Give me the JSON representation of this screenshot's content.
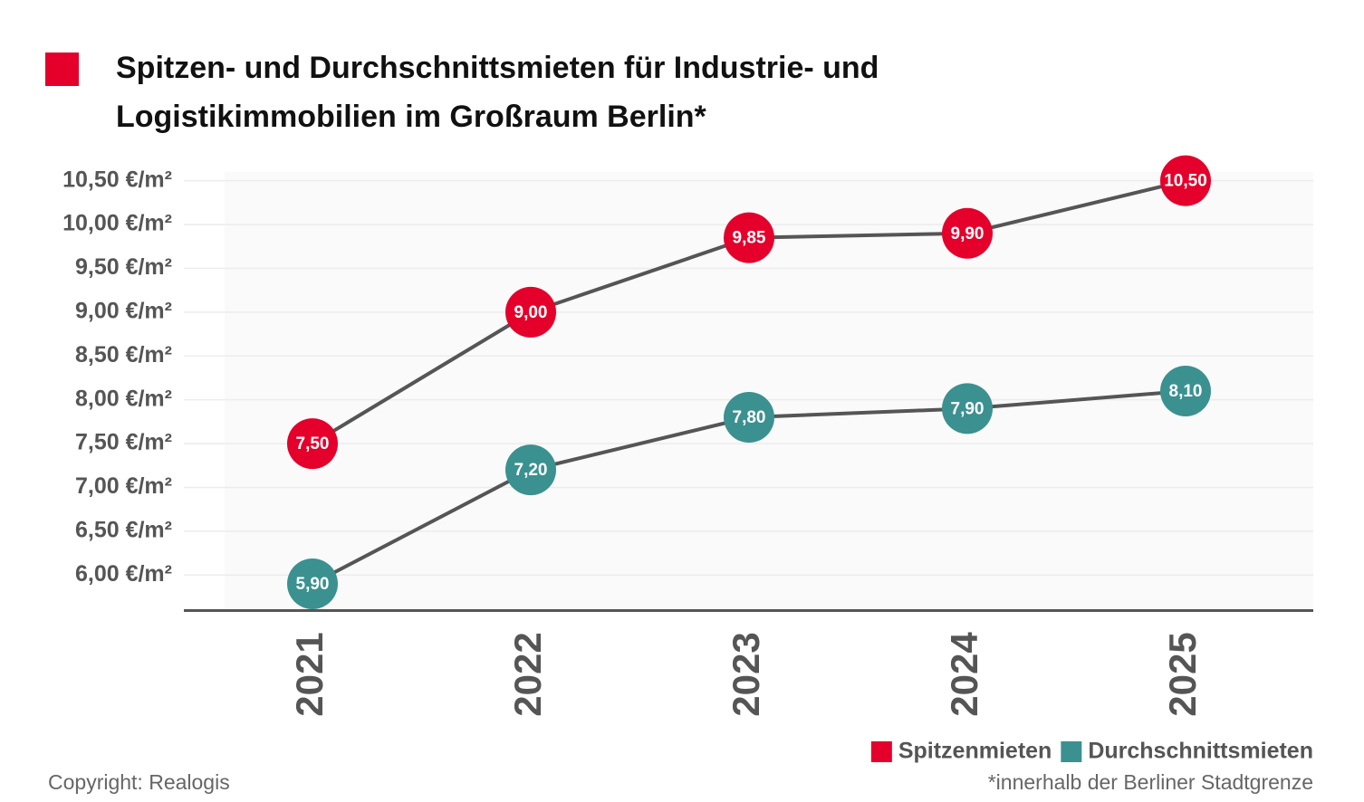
{
  "chart_data": {
    "type": "line",
    "title": "Spitzen- und Durchschnittsmieten für Industrie- und Logistikimmobilien im Großraum Berlin*",
    "title_marker_color": "#e4002b",
    "categories": [
      "2021",
      "2022",
      "2023",
      "2024",
      "2025"
    ],
    "series": [
      {
        "name": "Spitzenmieten",
        "color": "#e4002b",
        "values": [
          7.5,
          9.0,
          9.85,
          9.9,
          10.5
        ],
        "value_labels": [
          "7,50",
          "9,00",
          "9,85",
          "9,90",
          "10,50"
        ]
      },
      {
        "name": "Durchschnittsmieten",
        "color": "#3a9190",
        "values": [
          5.9,
          7.2,
          7.8,
          7.9,
          8.1
        ],
        "value_labels": [
          "5,90",
          "7,20",
          "7,80",
          "7,90",
          "8,10"
        ]
      }
    ],
    "line_color": "#555555",
    "ylim": [
      5.6,
      10.6
    ],
    "yticks": [
      {
        "value": 6,
        "label": "6,00 €/m²"
      },
      {
        "value": 6.5,
        "label": "6,50 €/m²"
      },
      {
        "value": 7,
        "label": "7,00 €/m²"
      },
      {
        "value": 7.5,
        "label": "7,50 €/m²"
      },
      {
        "value": 8,
        "label": "8,00 €/m²"
      },
      {
        "value": 8.5,
        "label": "8,50 €/m²"
      },
      {
        "value": 9,
        "label": "9,00 €/m²"
      },
      {
        "value": 9.5,
        "label": "9,50 €/m²"
      },
      {
        "value": 10,
        "label": "10,00 €/m²"
      },
      {
        "value": 10.5,
        "label": "10,50 €/m²"
      }
    ],
    "grid": true,
    "legend_position": "bottom-right",
    "copyright": "Copyright: Realogis",
    "footnote": "*innerhalb der Berliner Stadtgrenze"
  }
}
